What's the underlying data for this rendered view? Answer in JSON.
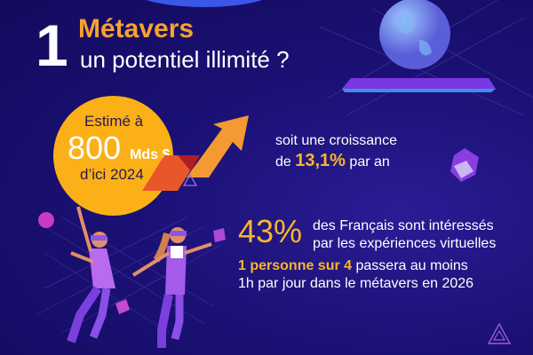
{
  "header": {
    "number": "1",
    "title": "Métavers",
    "subtitle": "un potentiel illimité ?"
  },
  "estimate": {
    "line1": "Estimé à",
    "value": "800",
    "unit": "Mds $",
    "line3": "d’ici 2024"
  },
  "growth": {
    "line1": "soit une croissance",
    "prefix": "de",
    "value": "13,1%",
    "suffix": "par an"
  },
  "interest": {
    "value": "43%",
    "line1": "des Français sont intéressés",
    "line2": "par les expériences virtuelles"
  },
  "usage": {
    "highlight": "1 personne sur 4",
    "line1_rest": "passera au moins",
    "line2": "1h par jour dans le métavers en 2026"
  },
  "colors": {
    "background": "#1b1175",
    "accent": "#f7b52c",
    "circle": "#fbb018"
  },
  "icons": [
    "globe-icon",
    "growth-arrow-icon",
    "cube-icon",
    "triangle-icon",
    "vr-dancers-illustration"
  ]
}
